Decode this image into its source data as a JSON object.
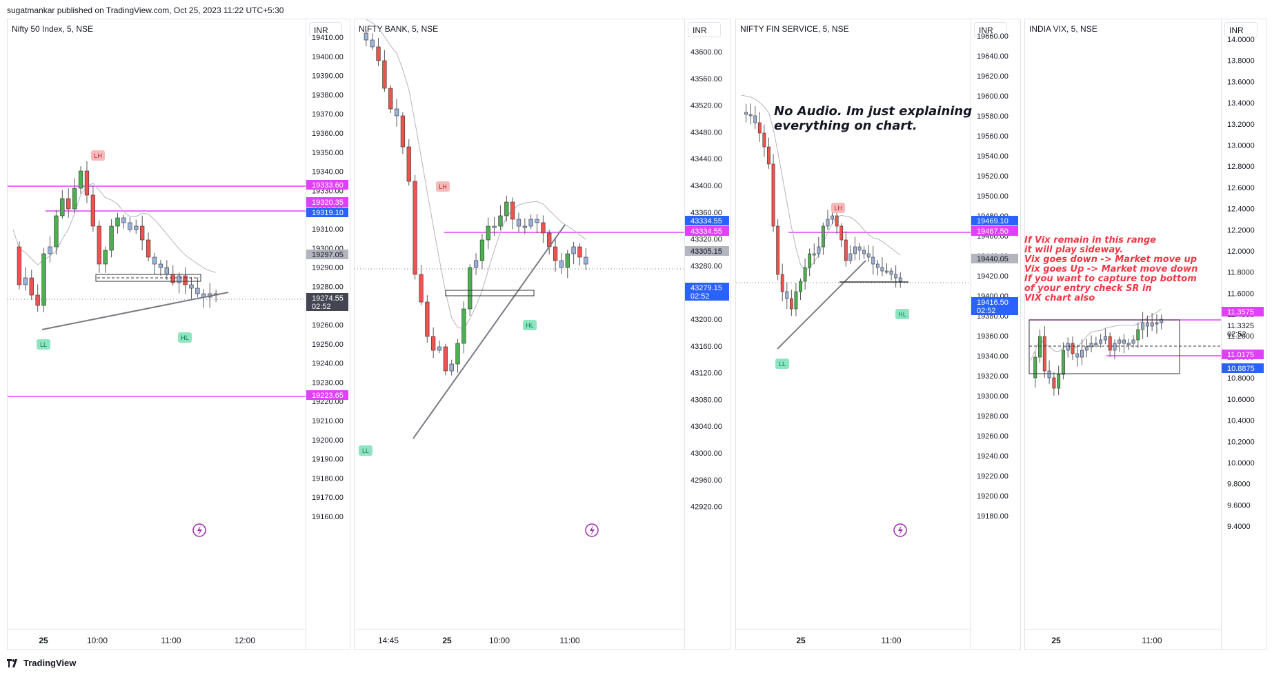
{
  "header": {
    "text": "sugatmankar published on TradingView.com, Oct 25, 2023 11:22 UTC+5:30"
  },
  "footer": {
    "brand": "TradingView"
  },
  "colors": {
    "up": "#4caf50",
    "down": "#ef5350",
    "neutral": "#9bb0d8",
    "magenta": "#e040fb",
    "blue": "#2962ff",
    "grey": "#b2b5be"
  },
  "annotations": {
    "black": [
      "No Audio. Im just explaining",
      "everything on chart."
    ],
    "red": [
      "If Vix remain in this range",
      "it will play sideway.",
      "Vix goes down -> Market move up",
      "Vix goes Up ->     Market move down",
      "If you want to capture top bottom",
      "of your entry check SR in",
      "VIX chart also"
    ]
  },
  "panels": [
    {
      "title": "Nifty 50 Index, 5, NSE",
      "currency": "INR",
      "ticks": [
        "19410.00",
        "19400.00",
        "19390.00",
        "19380.00",
        "19370.00",
        "19360.00",
        "19350.00",
        "19340.00",
        "19330.00",
        "19320.00",
        "19310.00",
        "19300.00",
        "19290.00",
        "19280.00",
        "19270.00",
        "19260.00",
        "19250.00",
        "19240.00",
        "19230.00",
        "19220.00",
        "19210.00",
        "19200.00",
        "19190.00",
        "19180.00",
        "19170.00",
        "19160.00"
      ],
      "price_labels": [
        {
          "text": "19333.60",
          "kind": "magenta"
        },
        {
          "text": "19320.35",
          "kind": "magenta"
        },
        {
          "text": "19319.10",
          "kind": "blue"
        },
        {
          "text": "19297.05",
          "kind": "grey"
        },
        {
          "text": "19223.65",
          "kind": "magenta"
        },
        {
          "text": "19274.55",
          "sub": "02:52",
          "kind": "dark"
        }
      ],
      "time_labels": [
        "25",
        "10:00",
        "11:00",
        "12:00"
      ],
      "markers": [
        "LH",
        "LL",
        "HL"
      ]
    },
    {
      "title": "NIFTY BANK, 5, NSE",
      "currency": "INR",
      "ticks": [
        "43600.00",
        "43560.00",
        "43520.00",
        "43480.00",
        "43440.00",
        "43400.00",
        "43360.00",
        "43320.00",
        "43280.00",
        "43240.00",
        "43200.00",
        "43160.00",
        "43120.00",
        "43080.00",
        "43040.00",
        "43000.00",
        "42960.00",
        "42920.00"
      ],
      "price_labels": [
        {
          "text": "43334.55",
          "kind": "blue"
        },
        {
          "text": "43334.55",
          "kind": "magenta"
        },
        {
          "text": "43305.15",
          "kind": "grey"
        },
        {
          "text": "43279.15",
          "sub": "02:52",
          "kind": "blue"
        }
      ],
      "time_labels": [
        "14:45",
        "25",
        "10:00",
        "11:00"
      ],
      "markers": [
        "LH",
        "LL",
        "HL"
      ]
    },
    {
      "title": "NIFTY FIN SERVICE, 5, NSE",
      "currency": "INR",
      "ticks": [
        "19660.00",
        "19640.00",
        "19620.00",
        "19600.00",
        "19580.00",
        "19560.00",
        "19540.00",
        "19520.00",
        "19500.00",
        "19480.00",
        "19460.00",
        "19440.00",
        "19420.00",
        "19400.00",
        "19380.00",
        "19360.00",
        "19340.00",
        "19320.00",
        "19300.00",
        "19280.00",
        "19260.00",
        "19240.00",
        "19220.00",
        "19200.00",
        "19180.00"
      ],
      "price_labels": [
        {
          "text": "19469.10",
          "kind": "blue"
        },
        {
          "text": "19467.50",
          "kind": "magenta"
        },
        {
          "text": "19440.05",
          "kind": "grey"
        },
        {
          "text": "19416.50",
          "sub": "02:52",
          "kind": "blue"
        }
      ],
      "time_labels": [
        "25",
        "11:00"
      ],
      "markers": [
        "LH",
        "LL",
        "HL"
      ]
    },
    {
      "title": "INDIA VIX, 5, NSE",
      "currency": "INR",
      "ticks": [
        "14.0000",
        "13.8000",
        "13.6000",
        "13.4000",
        "13.2000",
        "13.0000",
        "12.8000",
        "12.6000",
        "12.4000",
        "12.2000",
        "12.0000",
        "11.8000",
        "11.6000",
        "11.4000",
        "11.2000",
        "11.0000",
        "10.8000",
        "10.6000",
        "10.4000",
        "10.2000",
        "10.0000",
        "9.8000",
        "9.6000",
        "9.4000"
      ],
      "price_labels": [
        {
          "text": "11.3575",
          "kind": "magenta"
        },
        {
          "text": "11.3325",
          "sub": "02:52",
          "kind": "plain"
        },
        {
          "text": "11.0175",
          "kind": "magenta"
        },
        {
          "text": "10.8875",
          "kind": "blue"
        }
      ],
      "time_labels": [
        "25",
        "11:00"
      ],
      "markers": []
    }
  ]
}
